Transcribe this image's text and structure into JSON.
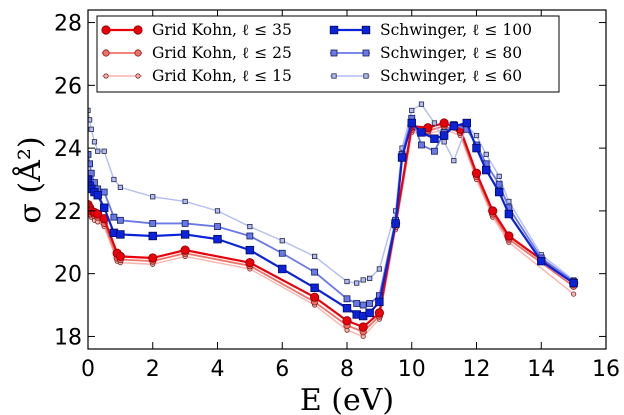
{
  "chart_data": {
    "type": "line",
    "title": "",
    "xlabel": "E (eV)",
    "ylabel": "σ (Å²)",
    "xlim": [
      0,
      16
    ],
    "ylim": [
      17.6,
      28.4
    ],
    "xticks": [
      0,
      2,
      4,
      6,
      8,
      10,
      12,
      14,
      16
    ],
    "yticks": [
      18,
      20,
      22,
      24,
      26,
      28
    ],
    "xtick_labels": [
      "0",
      "2",
      "4",
      "6",
      "8",
      "10",
      "12",
      "14",
      "16"
    ],
    "ytick_labels": [
      "18",
      "20",
      "22",
      "24",
      "26",
      "28"
    ],
    "grid": false,
    "legend_position": "top",
    "series": [
      {
        "name": "Grid Kohn, ℓ ≤ 35",
        "color": "#e8000b",
        "marker": "circle",
        "x": [
          0,
          0.05,
          0.1,
          0.2,
          0.3,
          0.5,
          0.9,
          1.0,
          2.0,
          3.0,
          5.0,
          7.0,
          8.0,
          8.5,
          9.0,
          9.5,
          10.0,
          10.5,
          11.0,
          11.5,
          12.0,
          12.5,
          13.0,
          15.0
        ],
        "y": [
          22.2,
          22.1,
          22.0,
          21.95,
          21.9,
          21.75,
          20.65,
          20.55,
          20.5,
          20.75,
          20.35,
          19.25,
          18.5,
          18.3,
          18.75,
          21.6,
          24.7,
          24.65,
          24.8,
          24.6,
          23.2,
          22.0,
          21.2,
          19.7
        ]
      },
      {
        "name": "Grid Kohn, ℓ ≤ 25",
        "color": "#f07167",
        "marker": "circle",
        "x": [
          0,
          0.05,
          0.1,
          0.2,
          0.3,
          0.5,
          0.9,
          1.0,
          2.0,
          3.0,
          5.0,
          7.0,
          8.0,
          8.5,
          9.0,
          9.5,
          10.0,
          10.5,
          11.0,
          11.5,
          12.0,
          12.5,
          13.0,
          15.0
        ],
        "y": [
          22.1,
          22.0,
          21.9,
          21.85,
          21.8,
          21.6,
          20.5,
          20.45,
          20.4,
          20.65,
          20.25,
          19.1,
          18.35,
          18.15,
          18.65,
          21.5,
          24.6,
          24.55,
          24.7,
          24.5,
          23.1,
          21.9,
          21.1,
          19.6
        ]
      },
      {
        "name": "Grid Kohn, ℓ ≤ 15",
        "color": "#f9b4ae",
        "marker": "circle",
        "x": [
          0,
          0.05,
          0.1,
          0.2,
          0.3,
          0.5,
          0.9,
          1.0,
          2.0,
          3.0,
          5.0,
          7.0,
          8.0,
          8.5,
          9.0,
          9.5,
          10.0,
          10.5,
          11.0,
          11.5,
          12.0,
          12.5,
          13.0,
          15.0
        ],
        "y": [
          22.0,
          21.9,
          21.8,
          21.7,
          21.65,
          21.5,
          20.4,
          20.35,
          20.3,
          20.55,
          20.15,
          19.0,
          18.2,
          18.0,
          18.55,
          21.4,
          24.5,
          24.45,
          24.6,
          24.4,
          23.0,
          21.8,
          21.0,
          19.35
        ]
      },
      {
        "name": "Schwinger, ℓ ≤ 100",
        "color": "#0a22d8",
        "marker": "square",
        "x": [
          0,
          0.05,
          0.1,
          0.2,
          0.3,
          0.5,
          0.8,
          1.0,
          2.0,
          3.0,
          4.0,
          5.0,
          6.0,
          7.0,
          8.0,
          8.3,
          8.5,
          8.7,
          9.0,
          9.5,
          9.7,
          10.0,
          10.3,
          10.7,
          11.0,
          11.3,
          11.7,
          12.0,
          12.3,
          12.7,
          13.0,
          14.0,
          15.0
        ],
        "y": [
          23.0,
          22.8,
          22.7,
          22.6,
          22.5,
          22.1,
          21.3,
          21.25,
          21.2,
          21.25,
          21.1,
          20.75,
          20.15,
          19.55,
          18.9,
          18.7,
          18.65,
          18.75,
          19.1,
          21.6,
          23.7,
          24.8,
          24.5,
          24.3,
          24.4,
          24.7,
          24.8,
          24.0,
          23.3,
          22.6,
          21.9,
          20.4,
          19.7
        ]
      },
      {
        "name": "Schwinger, ℓ ≤ 80",
        "color": "#6a78e8",
        "marker": "square",
        "x": [
          0,
          0.05,
          0.1,
          0.2,
          0.3,
          0.5,
          0.8,
          1.0,
          2.0,
          3.0,
          4.0,
          5.0,
          6.0,
          7.0,
          8.0,
          8.3,
          8.5,
          8.7,
          9.0,
          9.5,
          9.7,
          10.0,
          10.3,
          10.7,
          11.0,
          11.3,
          11.7,
          12.0,
          12.3,
          12.7,
          13.0,
          14.0,
          15.0
        ],
        "y": [
          23.8,
          23.5,
          23.2,
          22.9,
          22.7,
          22.6,
          21.8,
          21.7,
          21.6,
          21.6,
          21.5,
          21.2,
          20.65,
          20.05,
          19.2,
          19.05,
          19.0,
          19.05,
          19.3,
          21.7,
          23.8,
          24.95,
          24.1,
          23.9,
          24.5,
          24.75,
          24.6,
          24.1,
          23.5,
          22.85,
          22.1,
          20.5,
          19.75
        ]
      },
      {
        "name": "Schwinger, ℓ ≤ 60",
        "color": "#b4bcf2",
        "marker": "square",
        "x": [
          0,
          0.05,
          0.1,
          0.2,
          0.3,
          0.5,
          0.8,
          1.0,
          2.0,
          3.0,
          4.0,
          5.0,
          6.0,
          7.0,
          8.0,
          8.3,
          8.5,
          8.7,
          9.0,
          9.5,
          9.7,
          10.0,
          10.3,
          10.7,
          11.0,
          11.3,
          11.7,
          12.0,
          12.3,
          12.7,
          13.0,
          14.0,
          15.0
        ],
        "y": [
          25.2,
          24.9,
          24.6,
          24.2,
          23.9,
          23.9,
          23.0,
          22.75,
          22.45,
          22.3,
          22.0,
          21.5,
          21.05,
          20.55,
          19.75,
          19.7,
          19.8,
          19.85,
          20.15,
          22.0,
          24.0,
          25.2,
          25.4,
          24.8,
          24.2,
          23.6,
          24.7,
          24.4,
          23.8,
          23.1,
          22.3,
          20.6,
          19.8
        ]
      }
    ]
  }
}
